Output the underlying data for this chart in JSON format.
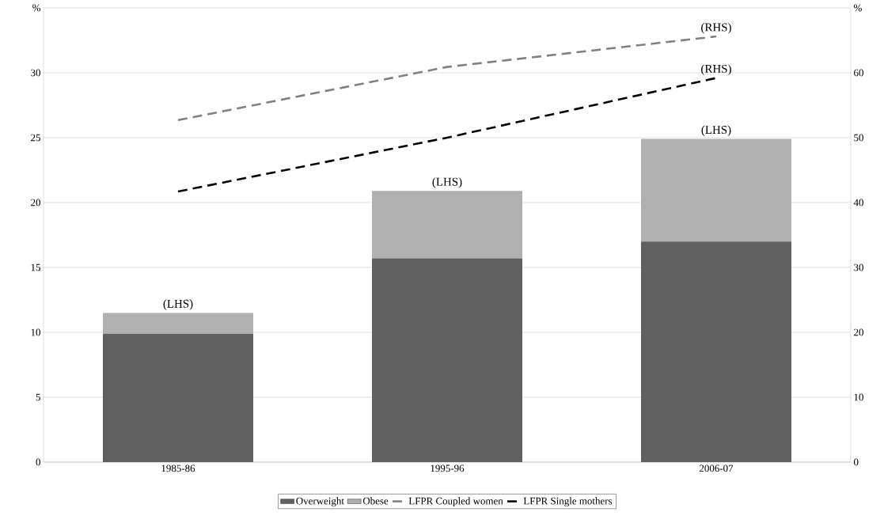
{
  "chart_data": {
    "type": "bar",
    "stacked": true,
    "categories": [
      "1985-86",
      "1995-96",
      "2006-07"
    ],
    "series": [
      {
        "name": "Overweight",
        "color": "#606060",
        "values": [
          9.9,
          15.7,
          17.0
        ]
      },
      {
        "name": "Obese",
        "color": "#b0b0b0",
        "values": [
          1.6,
          5.2,
          7.9
        ]
      },
      {
        "name": "LFPR Coupled women",
        "type": "line",
        "axis": "y2",
        "color": "#808080",
        "line_style": "dashed",
        "values": [
          52.7,
          60.9,
          65.6
        ]
      },
      {
        "name": "LFPR Single mothers",
        "type": "line",
        "axis": "y2",
        "color": "#000000",
        "line_style": "dashed",
        "values": [
          41.7,
          50.0,
          59.2
        ]
      }
    ],
    "ylim": [
      0,
      35
    ],
    "yticks": [
      0,
      5,
      10,
      15,
      20,
      25,
      30,
      {
        "value": 35,
        "label": "%"
      }
    ],
    "y2lim": [
      0,
      70
    ],
    "y2ticks": [
      0,
      10,
      20,
      30,
      40,
      50,
      60,
      {
        "value": 70,
        "label": "%"
      }
    ],
    "grid": "y",
    "legend": "bottom",
    "marker": "none",
    "annotations": [
      {
        "text": "(LHS)",
        "x": "1985-86",
        "y": 11.5
      },
      {
        "text": "(LHS)",
        "x": "1995-96",
        "y": 20.9
      },
      {
        "text": "(LHS)",
        "x": "2006-07",
        "y": 24.9
      },
      {
        "text": "(RHS)",
        "x": "2006-07",
        "y": 32.8
      },
      {
        "text": "(RHS)",
        "x": "2006-07",
        "y": 29.6
      }
    ]
  }
}
